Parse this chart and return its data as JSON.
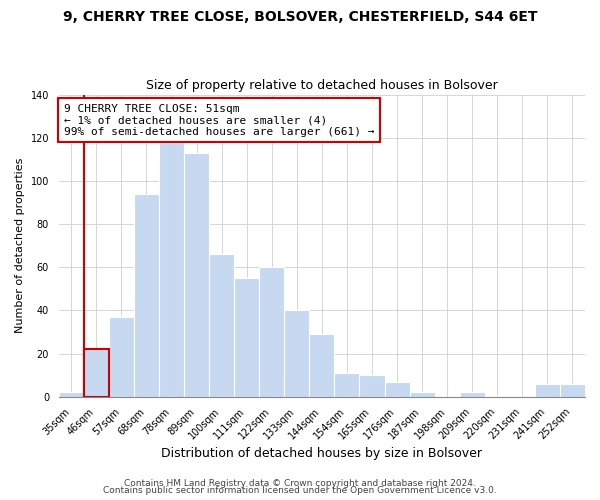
{
  "title": "9, CHERRY TREE CLOSE, BOLSOVER, CHESTERFIELD, S44 6ET",
  "subtitle": "Size of property relative to detached houses in Bolsover",
  "xlabel": "Distribution of detached houses by size in Bolsover",
  "ylabel": "Number of detached properties",
  "bar_labels": [
    "35sqm",
    "46sqm",
    "57sqm",
    "68sqm",
    "78sqm",
    "89sqm",
    "100sqm",
    "111sqm",
    "122sqm",
    "133sqm",
    "144sqm",
    "154sqm",
    "165sqm",
    "176sqm",
    "187sqm",
    "198sqm",
    "209sqm",
    "220sqm",
    "231sqm",
    "241sqm",
    "252sqm"
  ],
  "bar_values": [
    2,
    22,
    37,
    94,
    118,
    113,
    66,
    55,
    60,
    40,
    29,
    11,
    10,
    7,
    2,
    0,
    2,
    0,
    0,
    6,
    6
  ],
  "bar_color": "#c6d9f0",
  "bar_edge_color": "#a0b8d8",
  "highlight_bar_idx": 1,
  "highlight_color": "#cc0000",
  "annotation_line1": "9 CHERRY TREE CLOSE: 51sqm",
  "annotation_line2": "← 1% of detached houses are smaller (4)",
  "annotation_line3": "99% of semi-detached houses are larger (661) →",
  "annotation_box_color": "#ffffff",
  "annotation_box_edge": "#cc0000",
  "ylim": [
    0,
    140
  ],
  "yticks": [
    0,
    20,
    40,
    60,
    80,
    100,
    120,
    140
  ],
  "footer1": "Contains HM Land Registry data © Crown copyright and database right 2024.",
  "footer2": "Contains public sector information licensed under the Open Government Licence v3.0.",
  "title_fontsize": 10,
  "subtitle_fontsize": 9,
  "xlabel_fontsize": 9,
  "ylabel_fontsize": 8,
  "tick_fontsize": 7,
  "footer_fontsize": 6.5
}
